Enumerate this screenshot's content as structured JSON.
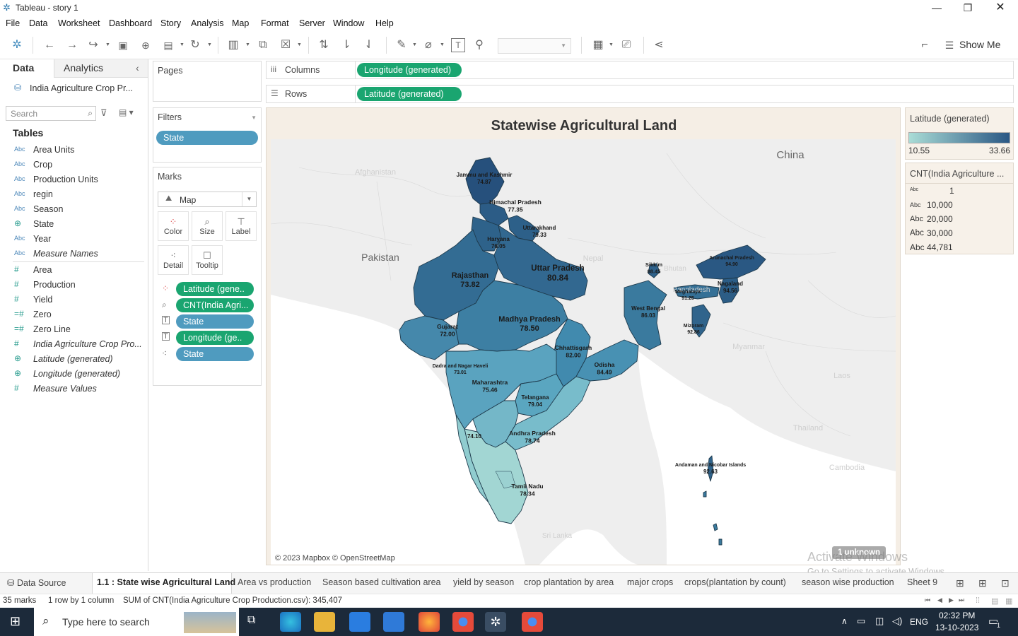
{
  "window": {
    "title": "Tableau - story 1"
  },
  "menu": [
    "File",
    "Data",
    "Worksheet",
    "Dashboard",
    "Story",
    "Analysis",
    "Map",
    "Format",
    "Server",
    "Window",
    "Help"
  ],
  "toolbar": {
    "show_me": "Show Me"
  },
  "datapane": {
    "tab_data": "Data",
    "tab_analytics": "Analytics",
    "datasource": "India Agriculture Crop Pr...",
    "search_placeholder": "Search",
    "tables_heading": "Tables",
    "fields": [
      {
        "type": "Abc",
        "name": "Area Units",
        "italic": false
      },
      {
        "type": "Abc",
        "name": "Crop",
        "italic": false
      },
      {
        "type": "Abc",
        "name": "Production Units",
        "italic": false
      },
      {
        "type": "Abc",
        "name": "regin",
        "italic": false
      },
      {
        "type": "Abc",
        "name": "Season",
        "italic": false
      },
      {
        "type": "geo",
        "name": "State",
        "italic": false
      },
      {
        "type": "Abc",
        "name": "Year",
        "italic": false
      },
      {
        "type": "Abc",
        "name": "Measure Names",
        "italic": true
      },
      {
        "type": "#",
        "name": "Area",
        "italic": false
      },
      {
        "type": "#",
        "name": "Production",
        "italic": false
      },
      {
        "type": "#",
        "name": "Yield",
        "italic": false
      },
      {
        "type": "=#",
        "name": "Zero",
        "italic": false
      },
      {
        "type": "=#",
        "name": "Zero Line",
        "italic": false
      },
      {
        "type": "#",
        "name": "India Agriculture Crop Pro...",
        "italic": true
      },
      {
        "type": "geo",
        "name": "Latitude (generated)",
        "italic": true
      },
      {
        "type": "geo",
        "name": "Longitude (generated)",
        "italic": true
      },
      {
        "type": "#",
        "name": "Measure Values",
        "italic": true
      }
    ]
  },
  "shelves": {
    "pages": "Pages",
    "filters": "Filters",
    "filter_pill": "State",
    "marks": "Marks",
    "mark_type": "Map",
    "mark_buttons": [
      "Color",
      "Size",
      "Label",
      "Detail",
      "Tooltip"
    ],
    "mark_pills": [
      {
        "label": "Latitude (gene..",
        "color": "green",
        "icon": "color"
      },
      {
        "label": "CNT(India Agri...",
        "color": "green",
        "icon": "size"
      },
      {
        "label": "State",
        "color": "blue",
        "icon": "label"
      },
      {
        "label": "Longitude (ge..",
        "color": "green",
        "icon": "label"
      },
      {
        "label": "State",
        "color": "blue",
        "icon": "detail"
      }
    ],
    "columns_label": "Columns",
    "columns_pill": "Longitude (generated)",
    "rows_label": "Rows",
    "rows_pill": "Latitude (generated)"
  },
  "viz": {
    "title": "Statewise Agricultural Land",
    "attribution": "© 2023 Mapbox © OpenStreetMap",
    "unknown": "1 unknown",
    "basemap_labels": [
      "China",
      "Pakistan",
      "Afghanistan",
      "Nepal",
      "Bhutan",
      "Bangladesh",
      "Myanmar",
      "Thailand",
      "Cambodia",
      "Laos",
      "Sri Lanka"
    ],
    "states": [
      {
        "name": "Jammu and Kashmir",
        "value": "74.87"
      },
      {
        "name": "Himachal Pradesh",
        "value": "77.35"
      },
      {
        "name": "Uttarakhand",
        "value": "79.33"
      },
      {
        "name": "Haryana",
        "value": "76.05"
      },
      {
        "name": "Rajasthan",
        "value": "73.82"
      },
      {
        "name": "Uttar Pradesh",
        "value": "80.84"
      },
      {
        "name": "Sikkim",
        "value": "88.45"
      },
      {
        "name": "Arunachal Pradesh",
        "value": "94.90"
      },
      {
        "name": "Nagaland",
        "value": "94.56"
      },
      {
        "name": "Meghalaya",
        "value": "91.25"
      },
      {
        "name": "West Bengal",
        "value": "86.03"
      },
      {
        "name": "Mizoram",
        "value": "92.86"
      },
      {
        "name": "Gujarat",
        "value": "72.00"
      },
      {
        "name": "Madhya Pradesh",
        "value": "78.50"
      },
      {
        "name": "Chhattisgarh",
        "value": "82.00"
      },
      {
        "name": "Odisha",
        "value": "84.49"
      },
      {
        "name": "Dadra and Nagar Haveli",
        "value": "73.01"
      },
      {
        "name": "Maharashtra",
        "value": "75.46"
      },
      {
        "name": "Telangana",
        "value": "79.04"
      },
      {
        "name": "Andhra Pradesh",
        "value": "78.74"
      },
      {
        "name": "Tamil Nadu",
        "value": "78.34"
      },
      {
        "name": "Andaman and Nicobar Islands",
        "value": "92.63"
      },
      {
        "name": "",
        "value": "74.10"
      }
    ]
  },
  "legend": {
    "color_title": "Latitude (generated)",
    "color_min": "10.55",
    "color_max": "33.66",
    "color_low": "#a9dcd6",
    "color_high": "#2a5784",
    "size_title": "CNT(India Agriculture ...",
    "size_items": [
      "1",
      "10,000",
      "20,000",
      "30,000",
      "44,781"
    ],
    "size_prefix": "Abc"
  },
  "tabs": {
    "data_source": "Data Source",
    "sheets": [
      "1.1 : State wise Agricultural Land",
      "Area vs production",
      "Season based cultivation area",
      "yield by season",
      "crop plantation by area",
      "major crops",
      "crops(plantation by count)",
      "season wise production",
      "Sheet 9"
    ]
  },
  "status": {
    "marks": "35 marks",
    "rows": "1 row by 1 column",
    "sum": "SUM of CNT(India Agriculture Crop Production.csv): 345,407"
  },
  "watermark": {
    "line1": "Activate Windows",
    "line2": "Go to Settings to activate Windows."
  },
  "taskbar": {
    "search_placeholder": "Type here to search",
    "lang": "ENG",
    "time": "02:32 PM",
    "date": "13-10-2023",
    "notif_count": "1"
  }
}
